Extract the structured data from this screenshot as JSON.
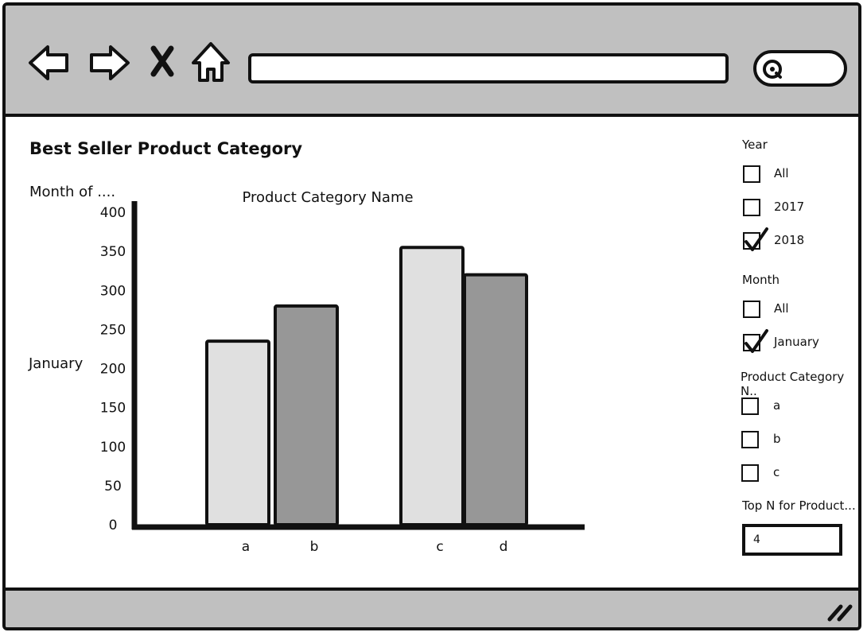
{
  "toolbar": {
    "url_value": "",
    "search_value": ""
  },
  "dashboard": {
    "title": "Best Seller Product Category",
    "row_header": "Month of ....",
    "row_value": "January"
  },
  "filters": {
    "year": {
      "label": "Year",
      "options": [
        {
          "label": "All",
          "checked": false
        },
        {
          "label": "2017",
          "checked": false
        },
        {
          "label": "2018",
          "checked": true
        }
      ]
    },
    "month": {
      "label": "Month",
      "options": [
        {
          "label": "All",
          "checked": false
        },
        {
          "label": "January",
          "checked": true
        }
      ]
    },
    "category": {
      "label": "Product Category N..",
      "options": [
        {
          "label": "a",
          "checked": false
        },
        {
          "label": "b",
          "checked": false
        },
        {
          "label": "c",
          "checked": false
        }
      ]
    },
    "top_n": {
      "label": "Top N for Product...",
      "value": "4"
    }
  },
  "chart_data": {
    "type": "bar",
    "title": "Product Category Name",
    "categories": [
      "a",
      "b",
      "c",
      "d"
    ],
    "values": [
      235,
      280,
      355,
      320
    ],
    "bar_colors": [
      "#e0e0e0",
      "#979797",
      "#e0e0e0",
      "#979797"
    ],
    "ylim": [
      0,
      400
    ],
    "yticks": [
      0,
      50,
      100,
      150,
      200,
      250,
      300,
      350,
      400
    ],
    "xlabel": "",
    "ylabel": ""
  }
}
